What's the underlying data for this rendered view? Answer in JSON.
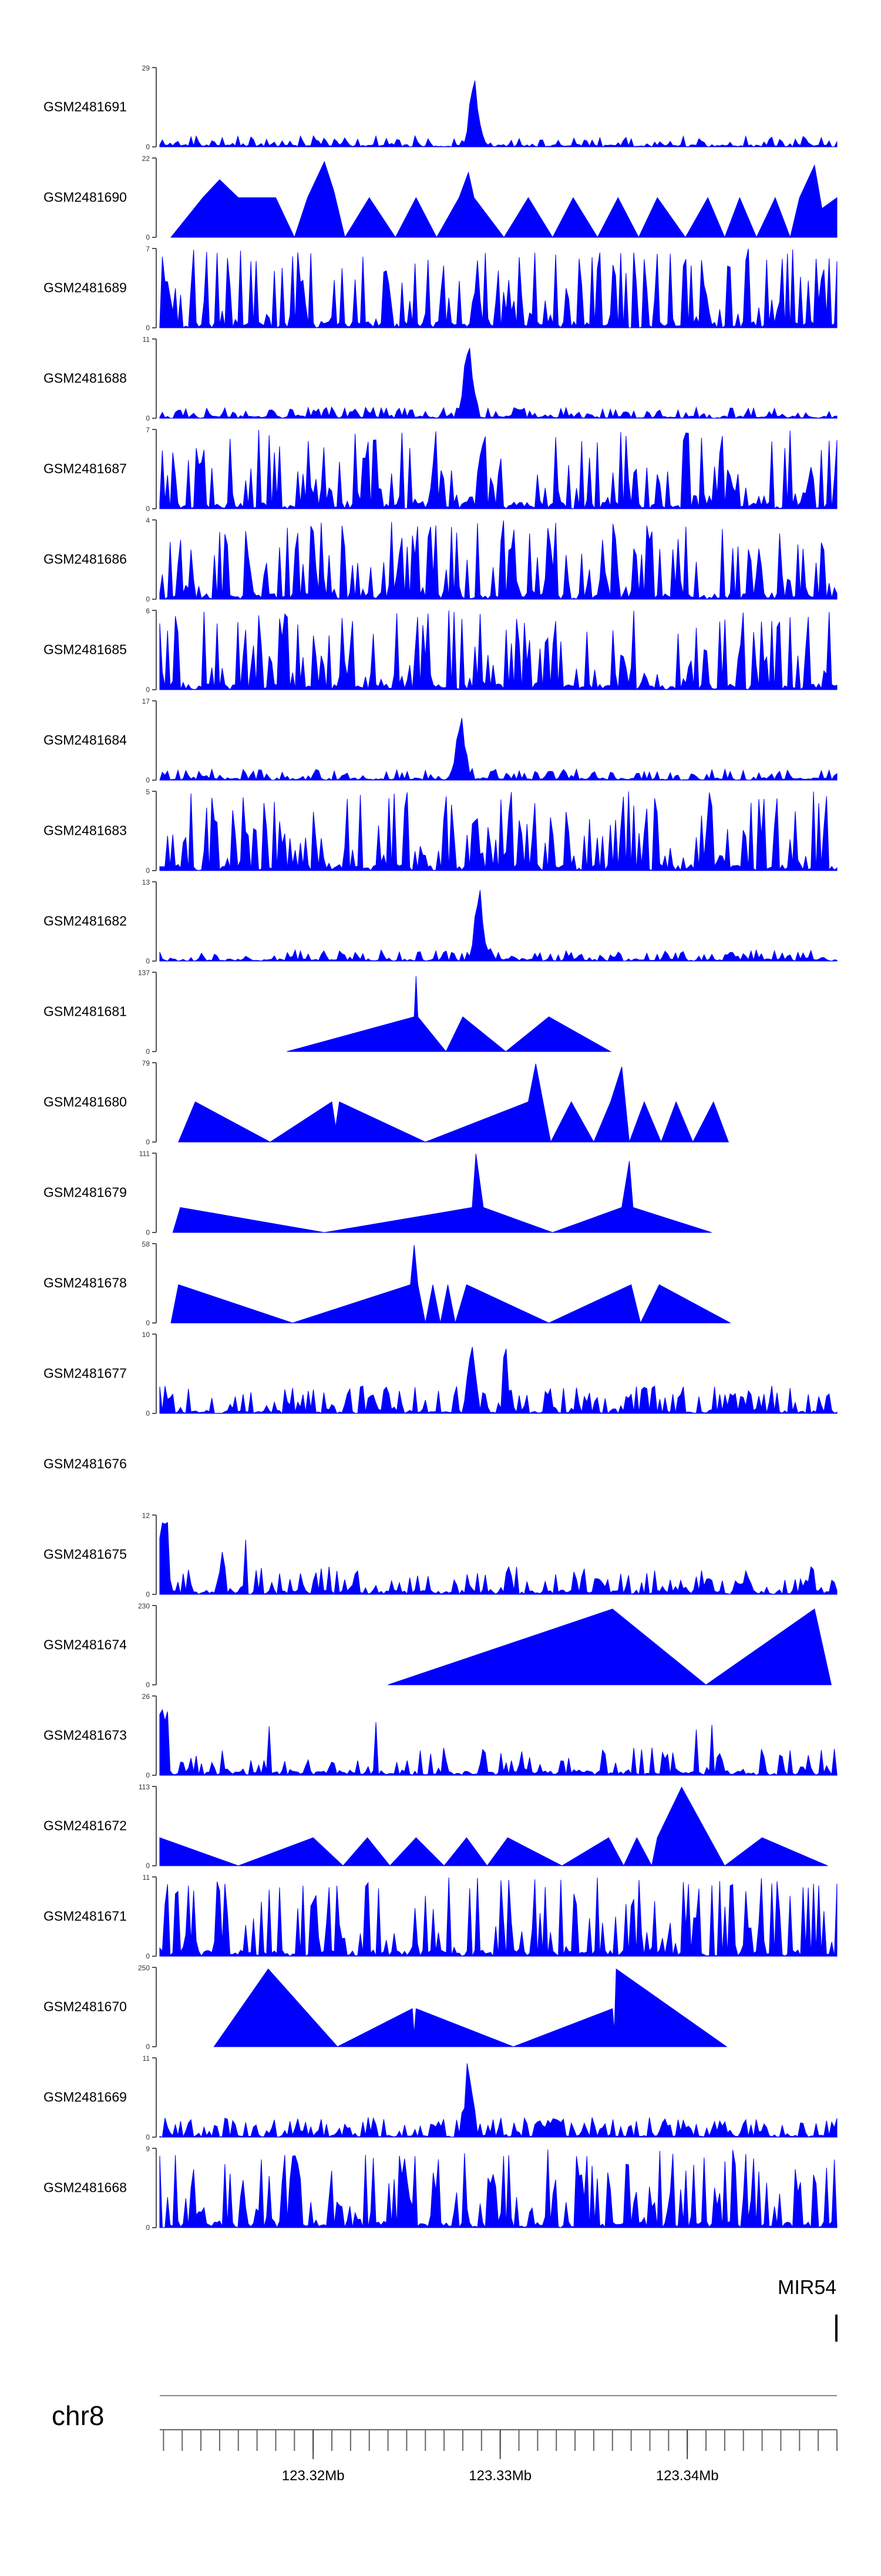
{
  "chart_data": {
    "type": "area",
    "title": "",
    "xlabel": "",
    "ylabel": "",
    "color": "#0000ff",
    "x_range_mb": [
      123.3118,
      123.348
    ],
    "x_ticks": [
      {
        "value": 123.32,
        "label": "123.32Mb"
      },
      {
        "value": 123.33,
        "label": "123.33Mb"
      },
      {
        "value": 123.34,
        "label": "123.34Mb"
      }
    ],
    "series": [
      {
        "name": "GSM2481691",
        "ymax": 29,
        "ymax_label": "29",
        "ymin_label": "0",
        "profile": "peak",
        "peak_x": 123.3286,
        "seed": 11
      },
      {
        "name": "GSM2481690",
        "ymax": 22,
        "ymax_label": "22",
        "ymin_label": "0",
        "profile": "triangles",
        "points": [
          [
            123.3124,
            0
          ],
          [
            123.3141,
            11
          ],
          [
            123.315,
            16
          ],
          [
            123.316,
            11
          ],
          [
            123.318,
            11
          ],
          [
            123.319,
            0
          ],
          [
            123.3197,
            11
          ],
          [
            123.3206,
            21
          ],
          [
            123.3211,
            13
          ],
          [
            123.3217,
            0
          ],
          [
            123.323,
            11
          ],
          [
            123.3244,
            0
          ],
          [
            123.3255,
            11
          ],
          [
            123.3266,
            0
          ],
          [
            123.3278,
            11
          ],
          [
            123.3283,
            18
          ],
          [
            123.3286,
            11
          ],
          [
            123.3302,
            0
          ],
          [
            123.3315,
            11
          ],
          [
            123.3328,
            0
          ],
          [
            123.3339,
            11
          ],
          [
            123.3352,
            0
          ],
          [
            123.3363,
            11
          ],
          [
            123.3374,
            0
          ],
          [
            123.3384,
            11
          ],
          [
            123.3399,
            0
          ],
          [
            123.3411,
            11
          ],
          [
            123.342,
            0
          ],
          [
            123.3428,
            11
          ],
          [
            123.3437,
            0
          ],
          [
            123.3447,
            11
          ],
          [
            123.3455,
            0
          ],
          [
            123.346,
            11
          ],
          [
            123.3468,
            20
          ],
          [
            123.3472,
            8
          ],
          [
            123.348,
            11
          ]
        ]
      },
      {
        "name": "GSM2481689",
        "ymax": 7,
        "ymax_label": "7",
        "ymin_label": "0",
        "profile": "spiky",
        "seed": 23
      },
      {
        "name": "GSM2481688",
        "ymax": 11,
        "ymax_label": "11",
        "ymin_label": "0",
        "profile": "peak",
        "peak_x": 123.3283,
        "seed": 31
      },
      {
        "name": "GSM2481687",
        "ymax": 7,
        "ymax_label": "7",
        "ymin_label": "0",
        "profile": "spiky",
        "seed": 37
      },
      {
        "name": "GSM2481686",
        "ymax": 4,
        "ymax_label": "4",
        "ymin_label": "0",
        "profile": "spiky",
        "seed": 41
      },
      {
        "name": "GSM2481685",
        "ymax": 6,
        "ymax_label": "6",
        "ymin_label": "0",
        "profile": "spiky",
        "seed": 43
      },
      {
        "name": "GSM2481684",
        "ymax": 17,
        "ymax_label": "17",
        "ymin_label": "0",
        "profile": "peak",
        "peak_x": 123.3279,
        "seed": 47
      },
      {
        "name": "GSM2481683",
        "ymax": 5,
        "ymax_label": "5",
        "ymin_label": "0",
        "profile": "spiky",
        "seed": 53
      },
      {
        "name": "GSM2481682",
        "ymax": 13,
        "ymax_label": "13",
        "ymin_label": "0",
        "profile": "peak",
        "peak_x": 123.3289,
        "seed": 59
      },
      {
        "name": "GSM2481681",
        "ymax": 137,
        "ymax_label": "137",
        "ymin_label": "0",
        "profile": "triangles",
        "points": [
          [
            123.3186,
            0
          ],
          [
            123.3254,
            60
          ],
          [
            123.3255,
            130
          ],
          [
            123.3256,
            60
          ],
          [
            123.3271,
            0
          ],
          [
            123.328,
            60
          ],
          [
            123.3303,
            0
          ],
          [
            123.3326,
            60
          ],
          [
            123.3359,
            0
          ]
        ]
      },
      {
        "name": "GSM2481680",
        "ymax": 79,
        "ymax_label": "79",
        "ymin_label": "0",
        "profile": "triangles",
        "points": [
          [
            123.3128,
            0
          ],
          [
            123.3137,
            40
          ],
          [
            123.3177,
            0
          ],
          [
            123.321,
            40
          ],
          [
            123.3212,
            15
          ],
          [
            123.3214,
            40
          ],
          [
            123.326,
            0
          ],
          [
            123.3315,
            40
          ],
          [
            123.3319,
            78
          ],
          [
            123.3327,
            0
          ],
          [
            123.3338,
            40
          ],
          [
            123.335,
            0
          ],
          [
            123.3359,
            40
          ],
          [
            123.3365,
            75
          ],
          [
            123.3369,
            0
          ],
          [
            123.3377,
            40
          ],
          [
            123.3386,
            0
          ],
          [
            123.3394,
            40
          ],
          [
            123.3403,
            0
          ],
          [
            123.3414,
            40
          ],
          [
            123.3422,
            0
          ]
        ]
      },
      {
        "name": "GSM2481679",
        "ymax": 111,
        "ymax_label": "111",
        "ymin_label": "0",
        "profile": "triangles",
        "points": [
          [
            123.3125,
            0
          ],
          [
            123.3129,
            35
          ],
          [
            123.3206,
            0
          ],
          [
            123.3285,
            35
          ],
          [
            123.3287,
            110
          ],
          [
            123.3291,
            35
          ],
          [
            123.3328,
            0
          ],
          [
            123.3365,
            35
          ],
          [
            123.3369,
            100
          ],
          [
            123.3371,
            35
          ],
          [
            123.3413,
            0
          ]
        ]
      },
      {
        "name": "GSM2481678",
        "ymax": 58,
        "ymax_label": "58",
        "ymin_label": "0",
        "profile": "triangles",
        "points": [
          [
            123.3124,
            0
          ],
          [
            123.3128,
            28
          ],
          [
            123.3189,
            0
          ],
          [
            123.3252,
            28
          ],
          [
            123.3254,
            57
          ],
          [
            123.3256,
            28
          ],
          [
            123.326,
            0
          ],
          [
            123.3264,
            28
          ],
          [
            123.3268,
            0
          ],
          [
            123.3272,
            28
          ],
          [
            123.3276,
            0
          ],
          [
            123.3282,
            28
          ],
          [
            123.3326,
            0
          ],
          [
            123.337,
            28
          ],
          [
            123.3375,
            0
          ],
          [
            123.3385,
            28
          ],
          [
            123.3423,
            0
          ]
        ]
      },
      {
        "name": "GSM2481677",
        "ymax": 10,
        "ymax_label": "10",
        "ymin_label": "0",
        "profile": "peaks2",
        "peak_x": 123.3285,
        "peak_x2": 123.3303,
        "seed": 61
      },
      {
        "name": "GSM2481676",
        "ymax": null,
        "ymax_label": "",
        "ymin_label": "",
        "profile": "empty"
      },
      {
        "name": "GSM2481675",
        "ymax": 12,
        "ymax_label": "12",
        "ymin_label": "0",
        "profile": "low",
        "seed": 67
      },
      {
        "name": "GSM2481674",
        "ymax": 230,
        "ymax_label": "230",
        "ymin_label": "0",
        "profile": "triangles",
        "points": [
          [
            123.324,
            0
          ],
          [
            123.336,
            220
          ],
          [
            123.341,
            0
          ],
          [
            123.3468,
            220
          ],
          [
            123.3477,
            0
          ]
        ]
      },
      {
        "name": "GSM2481673",
        "ymax": 26,
        "ymax_label": "26",
        "ymin_label": "0",
        "profile": "low",
        "seed": 71
      },
      {
        "name": "GSM2481672",
        "ymax": 113,
        "ymax_label": "113",
        "ymin_label": "0",
        "profile": "triangles",
        "points": [
          [
            123.3118,
            40
          ],
          [
            123.316,
            0
          ],
          [
            123.32,
            40
          ],
          [
            123.3216,
            0
          ],
          [
            123.3229,
            40
          ],
          [
            123.3241,
            0
          ],
          [
            123.3255,
            40
          ],
          [
            123.327,
            0
          ],
          [
            123.3282,
            40
          ],
          [
            123.3293,
            0
          ],
          [
            123.3304,
            40
          ],
          [
            123.3333,
            0
          ],
          [
            123.3358,
            40
          ],
          [
            123.3366,
            0
          ],
          [
            123.3373,
            40
          ],
          [
            123.3381,
            0
          ],
          [
            123.3384,
            40
          ],
          [
            123.3397,
            112
          ],
          [
            123.342,
            0
          ],
          [
            123.344,
            40
          ],
          [
            123.3475,
            0
          ]
        ]
      },
      {
        "name": "GSM2481671",
        "ymax": 11,
        "ymax_label": "11",
        "ymin_label": "0",
        "profile": "spiky",
        "seed": 73
      },
      {
        "name": "GSM2481670",
        "ymax": 250,
        "ymax_label": "250",
        "ymin_label": "0",
        "profile": "triangles",
        "points": [
          [
            123.3147,
            0
          ],
          [
            123.3176,
            245
          ],
          [
            123.3213,
            0
          ],
          [
            123.3253,
            120
          ],
          [
            123.3254,
            40
          ],
          [
            123.3255,
            120
          ],
          [
            123.3307,
            0
          ],
          [
            123.336,
            120
          ],
          [
            123.3361,
            50
          ],
          [
            123.3362,
            245
          ],
          [
            123.3421,
            0
          ]
        ]
      },
      {
        "name": "GSM2481669",
        "ymax": 11,
        "ymax_label": "11",
        "ymin_label": "0",
        "profile": "peak_small",
        "peak_x": 123.3283,
        "seed": 79
      },
      {
        "name": "GSM2481668",
        "ymax": 9,
        "ymax_label": "9",
        "ymin_label": "0",
        "profile": "spiky",
        "seed": 83
      }
    ],
    "gene": {
      "label": "MIR54",
      "position_mb": 123.348
    },
    "chromosome": "chr8"
  }
}
